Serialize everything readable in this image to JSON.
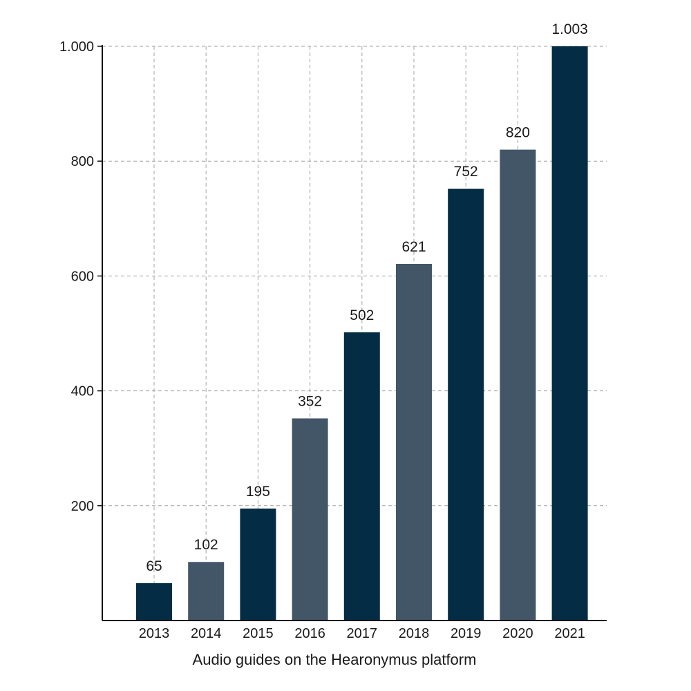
{
  "chart_data": {
    "type": "bar",
    "title": "",
    "xlabel": "Audio guides on the Hearonymus platform",
    "ylabel": "",
    "categories": [
      "2013",
      "2014",
      "2015",
      "2016",
      "2017",
      "2018",
      "2019",
      "2020",
      "2021"
    ],
    "values": [
      65,
      102,
      195,
      352,
      502,
      621,
      752,
      820,
      1003
    ],
    "value_labels": [
      "65",
      "102",
      "195",
      "352",
      "502",
      "621",
      "752",
      "820",
      "1.003"
    ],
    "ylim": [
      0,
      1000
    ],
    "yticks": [
      200,
      400,
      600,
      800,
      1000
    ],
    "ytick_labels": [
      "200",
      "400",
      "600",
      "800",
      "1.000"
    ],
    "grid": true,
    "grid_style": "dashed",
    "legend": "none",
    "colors": {
      "dark": "#042d45",
      "light": "#435668",
      "grid": "#a0a0a0",
      "axis": "#111111",
      "text": "#1a1a1a"
    },
    "bar_color_pattern": [
      "dark",
      "light",
      "dark",
      "light",
      "dark",
      "light",
      "dark",
      "light",
      "dark"
    ]
  }
}
